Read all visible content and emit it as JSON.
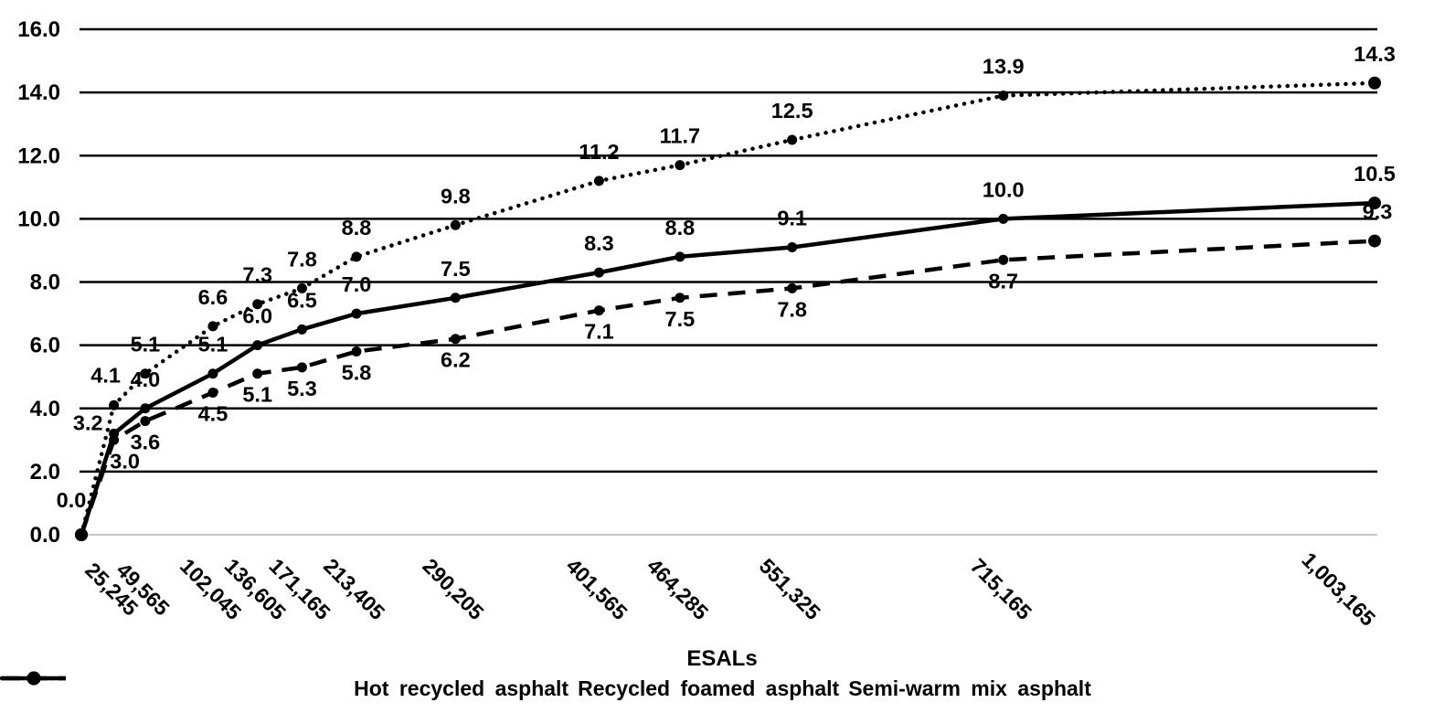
{
  "chart_data": {
    "type": "line",
    "title": "",
    "xlabel": "ESALs",
    "ylabel": "",
    "grid": true,
    "legend_position": "bottom",
    "x_axis": {
      "scale": "linear",
      "min": 0,
      "max": 1003165,
      "tick_values": [
        25245,
        49565,
        102045,
        136605,
        171165,
        213405,
        290205,
        401565,
        464285,
        551325,
        715165,
        1003165
      ],
      "tick_labels": [
        "25,245",
        "49,565",
        "102,045",
        "136,605",
        "171,165",
        "213,405",
        "290,205",
        "401,565",
        "464,285",
        "551,325",
        "715,165",
        "1,003,165"
      ]
    },
    "y_axis": {
      "min": 0,
      "max": 16,
      "step": 2,
      "tick_labels": [
        "0.0",
        "2.0",
        "4.0",
        "6.0",
        "8.0",
        "10.0",
        "12.0",
        "14.0",
        "16.0"
      ]
    },
    "x": [
      0,
      25245,
      49565,
      102045,
      136605,
      171165,
      213405,
      290205,
      401565,
      464285,
      551325,
      715165,
      1003165
    ],
    "series": [
      {
        "name": "Hot recycled asphalt",
        "line_style": "dotted",
        "values": [
          0.0,
          4.1,
          5.1,
          6.6,
          7.3,
          7.8,
          8.8,
          9.8,
          11.2,
          11.7,
          12.5,
          13.9,
          14.3
        ],
        "point_labels": [
          "0.0",
          "4.1",
          "5.1",
          "6.6",
          "7.3",
          "7.8",
          "8.8",
          "9.8",
          "11.2",
          "11.7",
          "12.5",
          "13.9",
          "14.3"
        ]
      },
      {
        "name": "Recycled foamed asphalt",
        "line_style": "dashed",
        "values": [
          0.0,
          3.0,
          3.6,
          4.5,
          5.1,
          5.3,
          5.8,
          6.2,
          7.1,
          7.5,
          7.8,
          8.7,
          9.3
        ],
        "point_labels": [
          "",
          "3.0",
          "3.6",
          "4.5",
          "5.1",
          "5.3",
          "5.8",
          "6.2",
          "7.1",
          "7.5",
          "7.8",
          "8.7",
          "9.3"
        ]
      },
      {
        "name": "Semi-warm mix asphalt",
        "line_style": "solid",
        "values": [
          0.0,
          3.2,
          4.0,
          5.1,
          6.0,
          6.5,
          7.0,
          7.5,
          8.3,
          8.8,
          9.1,
          10.0,
          10.5
        ],
        "point_labels": [
          "",
          "3.2",
          "4.0",
          "5.1",
          "6.0",
          "6.5",
          "7.0",
          "7.5",
          "8.3",
          "8.8",
          "9.1",
          "10.0",
          "10.5"
        ]
      }
    ],
    "colors": {
      "series": "#000000",
      "gridline": "#000000",
      "baseline": "#c8c8c8",
      "text": "#000000",
      "background": "#ffffff"
    }
  }
}
